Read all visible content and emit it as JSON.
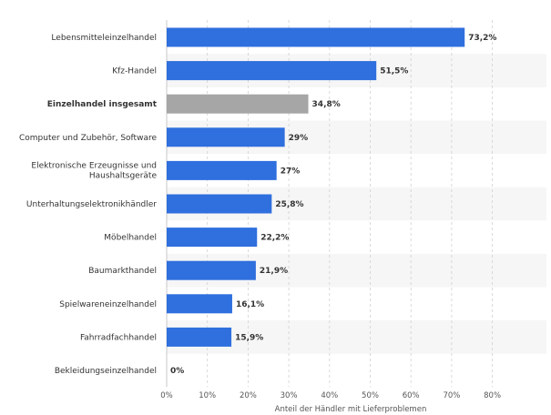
{
  "chart_data": {
    "type": "bar",
    "orientation": "horizontal",
    "categories": [
      "Lebensmitteleinzelhandel",
      "Kfz-Handel",
      "Einzelhandel insgesamt",
      "Computer und Zubehör, Software",
      "Elektronische Erzeugnisse und Haushaltsgeräte",
      "Unterhaltungselektronikhändler",
      "Möbelhandel",
      "Baumarkthandel",
      "Spielwareneinzelhandel",
      "Fahrradfachhandel",
      "Bekleidungseinzelhandel"
    ],
    "values": [
      73.2,
      51.5,
      34.8,
      29,
      27,
      25.8,
      22.2,
      21.9,
      16.1,
      15.9,
      0
    ],
    "value_labels": [
      "73,2%",
      "51,5%",
      "34,8%",
      "29%",
      "27%",
      "25,8%",
      "22,2%",
      "21,9%",
      "16,1%",
      "15,9%",
      "0%"
    ],
    "highlight_index": 2,
    "xlim": [
      0,
      80
    ],
    "xticks": [
      "0%",
      "10%",
      "20%",
      "30%",
      "40%",
      "50%",
      "60%",
      "70%",
      "80%"
    ],
    "xlabel": "Anteil der Händler mit Lieferproblemen",
    "ylabel": "",
    "title": "",
    "grid": "vertical dashed",
    "colors": {
      "bar": "#2f6fde",
      "highlight": "#a6a6a6",
      "stripe": "#f6f6f6",
      "grid": "#d0d0d0"
    }
  }
}
